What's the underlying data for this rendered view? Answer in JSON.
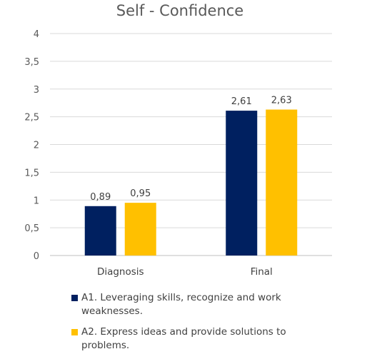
{
  "chart_data": {
    "type": "bar",
    "title": "Self - Confidence",
    "xlabel": "",
    "ylabel": "",
    "categories": [
      "Diagnosis",
      "Final"
    ],
    "series": [
      {
        "name": "A1. Leveraging skills, recognize and work weaknesses.",
        "values": [
          0.89,
          2.61
        ],
        "labels": [
          "0,89",
          "2,61"
        ],
        "color": "#002060"
      },
      {
        "name": "A2. Express ideas and provide solutions to problems.",
        "values": [
          0.95,
          2.63
        ],
        "labels": [
          "0,95",
          "2,63"
        ],
        "color": "#FFC000"
      }
    ],
    "ylim": [
      0,
      4
    ],
    "yticks": [
      0,
      0.5,
      1,
      1.5,
      2,
      2.5,
      3,
      3.5,
      4
    ],
    "ytick_labels": [
      "0",
      "0,5",
      "1",
      "1,5",
      "2",
      "2,5",
      "3",
      "3,5",
      "4"
    ],
    "grid": true,
    "legend_position": "bottom"
  }
}
